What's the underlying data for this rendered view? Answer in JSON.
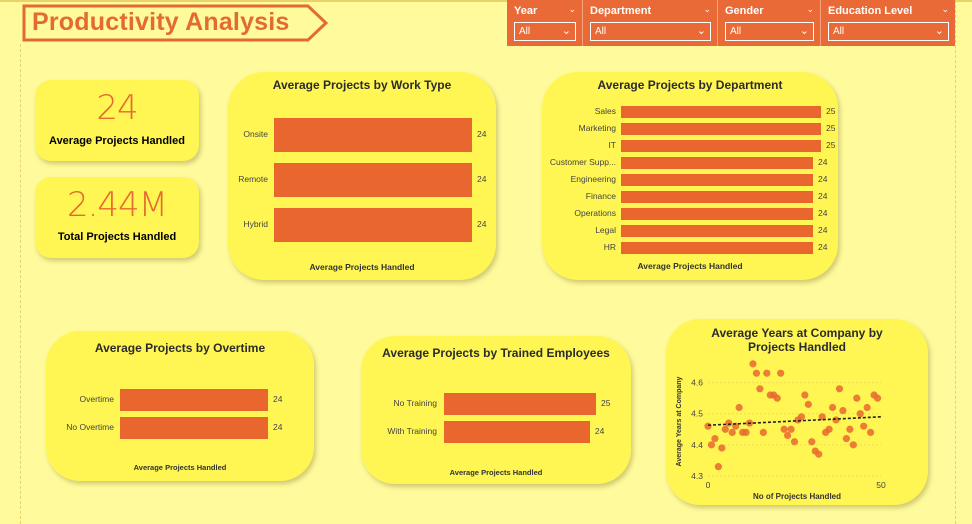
{
  "title": "Productivity Analysis",
  "colors": {
    "accent": "#e9672f",
    "card": "#fff653",
    "background": "#fffb9c"
  },
  "filters": [
    {
      "label": "Year",
      "value": "All"
    },
    {
      "label": "Department",
      "value": "All"
    },
    {
      "label": "Gender",
      "value": "All"
    },
    {
      "label": "Education Level",
      "value": "All"
    }
  ],
  "kpis": [
    {
      "value": "24",
      "label": "Average Projects Handled"
    },
    {
      "value": "2.44M",
      "label": "Total Projects Handled"
    }
  ],
  "chart_data": [
    {
      "type": "bar",
      "title": "Average Projects by Work Type",
      "xlabel": "Average Projects Handled",
      "categories": [
        "Onsite",
        "Remote",
        "Hybrid"
      ],
      "values": [
        24,
        24,
        24
      ],
      "value_labels": [
        "24",
        "24",
        "24"
      ]
    },
    {
      "type": "bar",
      "title": "Average Projects by Department",
      "xlabel": "Average Projects Handled",
      "categories": [
        "Sales",
        "Marketing",
        "IT",
        "Customer Supp...",
        "Engineering",
        "Finance",
        "Operations",
        "Legal",
        "HR"
      ],
      "values": [
        25,
        25,
        25,
        24,
        24,
        24,
        24,
        24,
        24
      ],
      "value_labels": [
        "25",
        "25",
        "25",
        "24",
        "24",
        "24",
        "24",
        "24",
        "24"
      ]
    },
    {
      "type": "bar",
      "title": "Average Projects by Overtime",
      "xlabel": "Average Projects Handled",
      "categories": [
        "Overtime",
        "No Overtime"
      ],
      "values": [
        24,
        24
      ],
      "value_labels": [
        "24",
        "24"
      ]
    },
    {
      "type": "bar",
      "title": "Average Projects by Trained Employees",
      "xlabel": "Average Projects Handled",
      "categories": [
        "No Training",
        "With Training"
      ],
      "values": [
        25,
        24
      ],
      "value_labels": [
        "25",
        "24"
      ]
    },
    {
      "type": "scatter",
      "title": "Average Years at Company by Projects Handled",
      "xlabel": "No of Projects Handled",
      "ylabel": "Average Years at Company",
      "xlim": [
        0,
        50
      ],
      "ylim": [
        4.3,
        4.65
      ],
      "xticks": [
        "0",
        "50"
      ],
      "yticks": [
        "4.3",
        "4.4",
        "4.5",
        "4.6"
      ],
      "trendline": {
        "x": [
          0,
          50
        ],
        "y": [
          4.463,
          4.49
        ],
        "style": "dashed"
      },
      "x": [
        0,
        1,
        2,
        3,
        4,
        5,
        6,
        7,
        8,
        9,
        10,
        11,
        12,
        13,
        14,
        15,
        16,
        17,
        18,
        19,
        20,
        21,
        22,
        23,
        24,
        25,
        26,
        27,
        28,
        29,
        30,
        31,
        32,
        33,
        34,
        35,
        36,
        37,
        38,
        39,
        40,
        41,
        42,
        43,
        44,
        45,
        46,
        47,
        48,
        49
      ],
      "y": [
        4.46,
        4.4,
        4.42,
        4.33,
        4.39,
        4.45,
        4.47,
        4.44,
        4.46,
        4.52,
        4.44,
        4.44,
        4.47,
        4.66,
        4.63,
        4.58,
        4.44,
        4.63,
        4.56,
        4.56,
        4.55,
        4.63,
        4.45,
        4.43,
        4.45,
        4.41,
        4.48,
        4.49,
        4.56,
        4.53,
        4.41,
        4.38,
        4.37,
        4.49,
        4.44,
        4.45,
        4.52,
        4.48,
        4.58,
        4.51,
        4.42,
        4.45,
        4.4,
        4.55,
        4.5,
        4.46,
        4.52,
        4.44,
        4.56,
        4.55
      ]
    }
  ]
}
